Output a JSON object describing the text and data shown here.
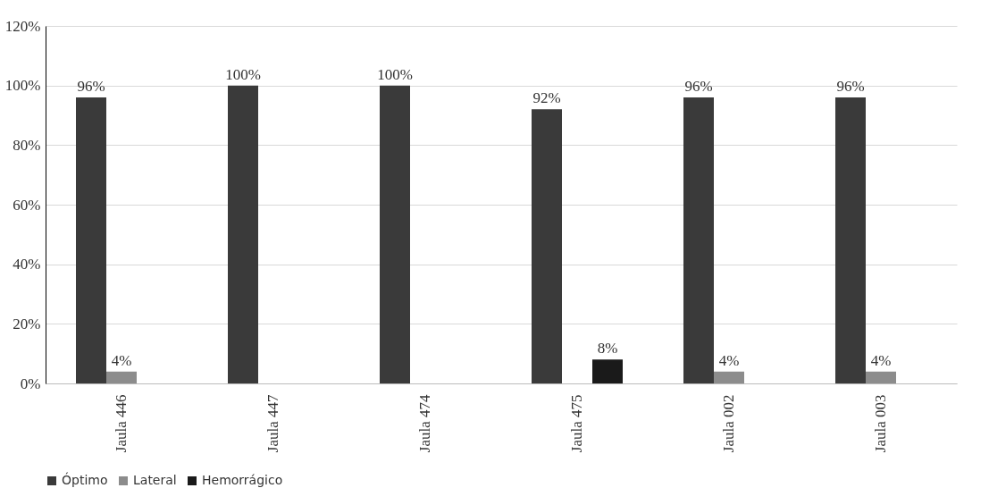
{
  "chart_data": {
    "type": "bar",
    "categories": [
      "Jaula 446",
      "Jaula 447",
      "Jaula 474",
      "Jaula 475",
      "Jaula 002",
      "Jaula 003"
    ],
    "series": [
      {
        "name": "Óptimo",
        "color": "#3a3a3a",
        "values": [
          96,
          100,
          100,
          92,
          96,
          96
        ],
        "value_labels": [
          "96%",
          "100%",
          "100%",
          "92%",
          "96%",
          "96%"
        ]
      },
      {
        "name": "Lateral",
        "color": "#8c8c8c",
        "values": [
          4,
          0,
          0,
          0,
          4,
          4
        ],
        "value_labels": [
          "4%",
          null,
          null,
          null,
          "4%",
          "4%"
        ]
      },
      {
        "name": "Hemorrágico",
        "color": "#1a1a1a",
        "values": [
          0,
          0,
          0,
          8,
          0,
          0
        ],
        "value_labels": [
          null,
          null,
          null,
          "8%",
          null,
          null
        ]
      }
    ],
    "ylim": [
      0,
      120
    ],
    "yticks": [
      {
        "value": 0,
        "label": "0%"
      },
      {
        "value": 20,
        "label": "20%"
      },
      {
        "value": 40,
        "label": "40%"
      },
      {
        "value": 60,
        "label": "60%"
      },
      {
        "value": 80,
        "label": "80%"
      },
      {
        "value": 100,
        "label": "100%"
      },
      {
        "value": 120,
        "label": "120%"
      }
    ],
    "grid": "y",
    "legend": "bottom"
  }
}
